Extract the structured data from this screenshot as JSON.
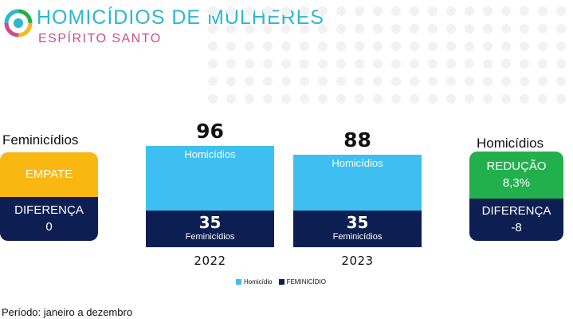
{
  "header": {
    "title": "HOMICÍDIOS DE MULHERES",
    "subtitle": "ESPÍRITO SANTO"
  },
  "left_panel": {
    "title": "Feminicídios",
    "status": "EMPATE",
    "diff_label": "DIFERENÇA",
    "diff_value": "0"
  },
  "right_panel": {
    "title": "Homicídios",
    "status": "REDUÇÃO",
    "pct": "8,3%",
    "diff_label": "DIFERENÇA",
    "diff_value": "-8"
  },
  "chart_data": {
    "type": "bar",
    "categories": [
      "2022",
      "2023"
    ],
    "series": [
      {
        "name": "Homicídio",
        "values": [
          96,
          88
        ],
        "bar_label": "Homicídios",
        "color": "#3dbff2"
      },
      {
        "name": "FEMINICÍDIO",
        "values": [
          35,
          35
        ],
        "bar_label": "Feminicídios",
        "color": "#0d1f52"
      }
    ],
    "legend_position": "bottom",
    "grid": false
  },
  "footer": {
    "period": "Período: janeiro a dezembro"
  },
  "colors": {
    "accent_teal": "#2bb8cf",
    "accent_pink": "#d04a8e",
    "empate_yellow": "#f9b712",
    "reducao_green": "#21b04b",
    "navy": "#0d1f52",
    "sky": "#3dbff2"
  }
}
